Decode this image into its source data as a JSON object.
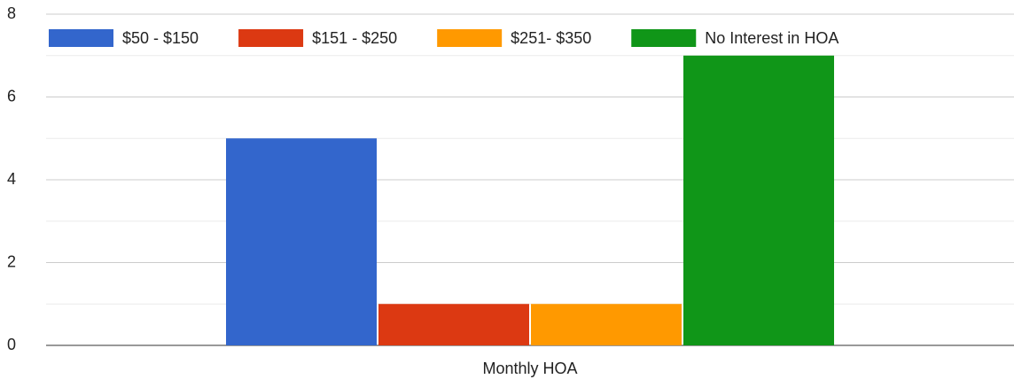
{
  "chart_data": {
    "type": "bar",
    "categories": [
      "Monthly HOA"
    ],
    "series": [
      {
        "name": "$50 - $150",
        "color": "#3366cc",
        "values": [
          5
        ]
      },
      {
        "name": "$151 - $250",
        "color": "#dc3912",
        "values": [
          1
        ]
      },
      {
        "name": "$251- $350",
        "color": "#ff9900",
        "values": [
          1
        ]
      },
      {
        "name": "No Interest in HOA",
        "color": "#109618",
        "values": [
          7
        ]
      }
    ],
    "ylim": [
      0,
      8
    ],
    "yticks": [
      0,
      2,
      4,
      6,
      8
    ],
    "minor_yticks": [
      1,
      3,
      5,
      7
    ],
    "grid": true,
    "legend": "top"
  }
}
